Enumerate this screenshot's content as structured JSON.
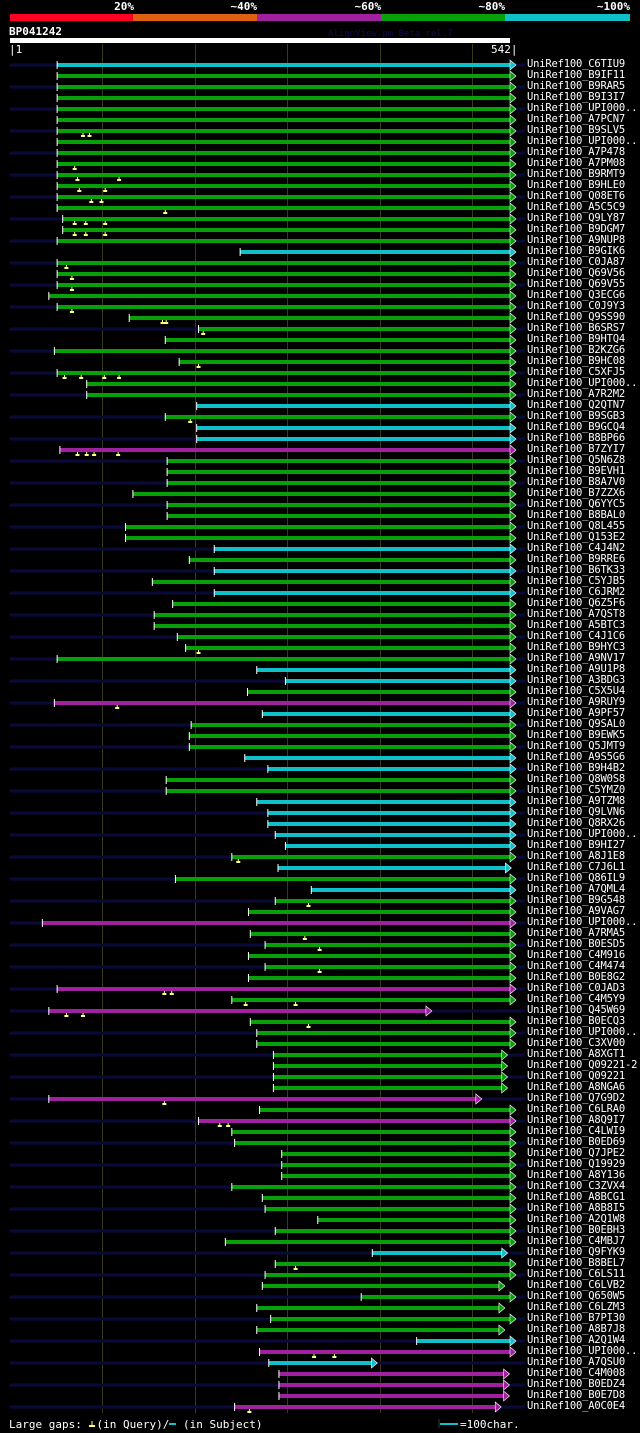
{
  "legend": {
    "labels": [
      "20%",
      "~40%",
      "~60%",
      "~80%",
      "~100%"
    ],
    "colors": [
      "#ff0022",
      "#e06010",
      "#a020a0",
      "#08a008",
      "#10c0c8"
    ]
  },
  "query": {
    "name": "BP041242",
    "length": 542,
    "start_label": "1",
    "end_label": "542"
  },
  "watermark": "AlignView.pm Beta rel.7",
  "colors": {
    "cyan": "#10c0c8",
    "green": "#08a008",
    "purple": "#a020a0",
    "query_line": "#0a0a3a",
    "grid": "#3a3a1a",
    "gap_marker": "#ffff80"
  },
  "hits": [
    {
      "label": "UniRef100_C6TIU9",
      "color": "cyan",
      "start": 52,
      "end": 542,
      "gaps": []
    },
    {
      "label": "UniRef100_B9IF11",
      "color": "green",
      "start": 52,
      "end": 542,
      "gaps": []
    },
    {
      "label": "UniRef100_B9RAR5",
      "color": "green",
      "start": 52,
      "end": 542,
      "gaps": []
    },
    {
      "label": "UniRef100_B9I3I7",
      "color": "green",
      "start": 52,
      "end": 542,
      "gaps": []
    },
    {
      "label": "UniRef100_UPI000..",
      "color": "green",
      "start": 52,
      "end": 542,
      "gaps": []
    },
    {
      "label": "UniRef100_A7PCN7",
      "color": "green",
      "start": 52,
      "end": 542,
      "gaps": []
    },
    {
      "label": "UniRef100_B9SLV5",
      "color": "green",
      "start": 52,
      "end": 542,
      "gaps": [
        80,
        87
      ]
    },
    {
      "label": "UniRef100_UPI000..",
      "color": "green",
      "start": 52,
      "end": 542,
      "gaps": []
    },
    {
      "label": "UniRef100_A7P478",
      "color": "green",
      "start": 52,
      "end": 542,
      "gaps": []
    },
    {
      "label": "UniRef100_A7PM08",
      "color": "green",
      "start": 52,
      "end": 542,
      "gaps": [
        71
      ]
    },
    {
      "label": "UniRef100_B9RMT9",
      "color": "green",
      "start": 52,
      "end": 542,
      "gaps": [
        74,
        119
      ]
    },
    {
      "label": "UniRef100_B9HLE0",
      "color": "green",
      "start": 52,
      "end": 542,
      "gaps": [
        76,
        104
      ]
    },
    {
      "label": "UniRef100_Q08ET6",
      "color": "green",
      "start": 52,
      "end": 542,
      "gaps": [
        89,
        100
      ]
    },
    {
      "label": "UniRef100_A5C5C9",
      "color": "green",
      "start": 52,
      "end": 542,
      "gaps": [
        169
      ]
    },
    {
      "label": "UniRef100_Q9LY87",
      "color": "green",
      "start": 58,
      "end": 542,
      "gaps": [
        71,
        83,
        104
      ]
    },
    {
      "label": "UniRef100_B9DGM7",
      "color": "green",
      "start": 58,
      "end": 542,
      "gaps": [
        71,
        83,
        104
      ]
    },
    {
      "label": "UniRef100_A9NUP8",
      "color": "green",
      "start": 52,
      "end": 542,
      "gaps": []
    },
    {
      "label": "UniRef100_B9GIK6",
      "color": "cyan",
      "start": 250,
      "end": 542,
      "gaps": []
    },
    {
      "label": "UniRef100_C0JA87",
      "color": "green",
      "start": 52,
      "end": 542,
      "gaps": [
        62
      ]
    },
    {
      "label": "UniRef100_Q69V56",
      "color": "green",
      "start": 52,
      "end": 542,
      "gaps": [
        68
      ]
    },
    {
      "label": "UniRef100_Q69V55",
      "color": "green",
      "start": 52,
      "end": 542,
      "gaps": [
        68
      ]
    },
    {
      "label": "UniRef100_Q3ECG6",
      "color": "green",
      "start": 43,
      "end": 542,
      "gaps": []
    },
    {
      "label": "UniRef100_C0J9Y3",
      "color": "green",
      "start": 52,
      "end": 542,
      "gaps": [
        68
      ]
    },
    {
      "label": "UniRef100_Q9SS90",
      "color": "green",
      "start": 130,
      "end": 542,
      "gaps": [
        166,
        170
      ]
    },
    {
      "label": "UniRef100_B6SRS7",
      "color": "green",
      "start": 205,
      "end": 542,
      "gaps": [
        210
      ]
    },
    {
      "label": "UniRef100_B9HTQ4",
      "color": "green",
      "start": 169,
      "end": 542,
      "gaps": []
    },
    {
      "label": "UniRef100_B2KZG6",
      "color": "green",
      "start": 49,
      "end": 542,
      "gaps": []
    },
    {
      "label": "UniRef100_B9HC08",
      "color": "green",
      "start": 184,
      "end": 542,
      "gaps": [
        205
      ]
    },
    {
      "label": "UniRef100_C5XFJ5",
      "color": "green",
      "start": 52,
      "end": 542,
      "gaps": [
        60,
        78,
        103,
        119
      ]
    },
    {
      "label": "UniRef100_UPI000..",
      "color": "green",
      "start": 84,
      "end": 542,
      "gaps": []
    },
    {
      "label": "UniRef100_A7R2M2",
      "color": "green",
      "start": 84,
      "end": 542,
      "gaps": []
    },
    {
      "label": "UniRef100_Q2QTN7",
      "color": "cyan",
      "start": 203,
      "end": 542,
      "gaps": []
    },
    {
      "label": "UniRef100_B9SGB3",
      "color": "green",
      "start": 169,
      "end": 542,
      "gaps": [
        196
      ]
    },
    {
      "label": "UniRef100_B9GCQ4",
      "color": "cyan",
      "start": 203,
      "end": 542,
      "gaps": []
    },
    {
      "label": "UniRef100_B8BP66",
      "color": "cyan",
      "start": 203,
      "end": 542,
      "gaps": []
    },
    {
      "label": "UniRef100_B7ZYI7",
      "color": "purple",
      "start": 55,
      "end": 542,
      "gaps": [
        74,
        84,
        92,
        118
      ]
    },
    {
      "label": "UniRef100_Q5N6Z8",
      "color": "green",
      "start": 171,
      "end": 542,
      "gaps": []
    },
    {
      "label": "UniRef100_B9EVH1",
      "color": "green",
      "start": 171,
      "end": 542,
      "gaps": []
    },
    {
      "label": "UniRef100_B8A7V0",
      "color": "green",
      "start": 171,
      "end": 542,
      "gaps": []
    },
    {
      "label": "UniRef100_B7ZZX6",
      "color": "green",
      "start": 134,
      "end": 542,
      "gaps": []
    },
    {
      "label": "UniRef100_Q6YYC5",
      "color": "green",
      "start": 171,
      "end": 542,
      "gaps": []
    },
    {
      "label": "UniRef100_B8BAL0",
      "color": "green",
      "start": 171,
      "end": 542,
      "gaps": []
    },
    {
      "label": "UniRef100_Q8L455",
      "color": "green",
      "start": 126,
      "end": 542,
      "gaps": []
    },
    {
      "label": "UniRef100_Q153E2",
      "color": "green",
      "start": 126,
      "end": 542,
      "gaps": []
    },
    {
      "label": "UniRef100_C4J4N2",
      "color": "cyan",
      "start": 222,
      "end": 542,
      "gaps": []
    },
    {
      "label": "UniRef100_B9RRE6",
      "color": "green",
      "start": 195,
      "end": 542,
      "gaps": []
    },
    {
      "label": "UniRef100_B6TK33",
      "color": "cyan",
      "start": 222,
      "end": 542,
      "gaps": []
    },
    {
      "label": "UniRef100_C5YJB5",
      "color": "green",
      "start": 155,
      "end": 542,
      "gaps": []
    },
    {
      "label": "UniRef100_C6JRM2",
      "color": "cyan",
      "start": 222,
      "end": 542,
      "gaps": []
    },
    {
      "label": "UniRef100_Q6Z5F6",
      "color": "green",
      "start": 177,
      "end": 542,
      "gaps": []
    },
    {
      "label": "UniRef100_A7QST8",
      "color": "green",
      "start": 157,
      "end": 542,
      "gaps": []
    },
    {
      "label": "UniRef100_A5BTC3",
      "color": "green",
      "start": 157,
      "end": 542,
      "gaps": []
    },
    {
      "label": "UniRef100_C4J1C6",
      "color": "green",
      "start": 182,
      "end": 542,
      "gaps": []
    },
    {
      "label": "UniRef100_B9HYC3",
      "color": "green",
      "start": 191,
      "end": 542,
      "gaps": [
        205
      ]
    },
    {
      "label": "UniRef100_A9NV17",
      "color": "green",
      "start": 52,
      "end": 542,
      "gaps": []
    },
    {
      "label": "UniRef100_A9U1P8",
      "color": "cyan",
      "start": 268,
      "end": 542,
      "gaps": []
    },
    {
      "label": "UniRef100_A3BDG3",
      "color": "cyan",
      "start": 299,
      "end": 542,
      "gaps": []
    },
    {
      "label": "UniRef100_C5X5U4",
      "color": "green",
      "start": 258,
      "end": 542,
      "gaps": []
    },
    {
      "label": "UniRef100_A9RUY9",
      "color": "purple",
      "start": 49,
      "end": 542,
      "gaps": [
        117
      ]
    },
    {
      "label": "UniRef100_A9PF57",
      "color": "cyan",
      "start": 274,
      "end": 542,
      "gaps": []
    },
    {
      "label": "UniRef100_Q9SAL0",
      "color": "green",
      "start": 197,
      "end": 542,
      "gaps": []
    },
    {
      "label": "UniRef100_B9EWK5",
      "color": "green",
      "start": 195,
      "end": 542,
      "gaps": []
    },
    {
      "label": "UniRef100_Q5JMT9",
      "color": "green",
      "start": 195,
      "end": 542,
      "gaps": []
    },
    {
      "label": "UniRef100_A9S5G6",
      "color": "cyan",
      "start": 255,
      "end": 542,
      "gaps": []
    },
    {
      "label": "UniRef100_B9H4B2",
      "color": "cyan",
      "start": 280,
      "end": 542,
      "gaps": []
    },
    {
      "label": "UniRef100_Q8W0S8",
      "color": "green",
      "start": 170,
      "end": 542,
      "gaps": []
    },
    {
      "label": "UniRef100_C5YMZ0",
      "color": "green",
      "start": 170,
      "end": 542,
      "gaps": []
    },
    {
      "label": "UniRef100_A9TZM8",
      "color": "cyan",
      "start": 268,
      "end": 542,
      "gaps": []
    },
    {
      "label": "UniRef100_Q9LVN6",
      "color": "cyan",
      "start": 280,
      "end": 542,
      "gaps": []
    },
    {
      "label": "UniRef100_Q8RX26",
      "color": "cyan",
      "start": 280,
      "end": 542,
      "gaps": []
    },
    {
      "label": "UniRef100_UPI000..",
      "color": "cyan",
      "start": 288,
      "end": 542,
      "gaps": []
    },
    {
      "label": "UniRef100_B9HI27",
      "color": "cyan",
      "start": 299,
      "end": 542,
      "gaps": []
    },
    {
      "label": "UniRef100_A8J1E8",
      "color": "green",
      "start": 241,
      "end": 542,
      "gaps": [
        248
      ]
    },
    {
      "label": "UniRef100_C7J6L1",
      "color": "cyan",
      "start": 291,
      "end": 537,
      "gaps": []
    },
    {
      "label": "UniRef100_Q86IL9",
      "color": "green",
      "start": 180,
      "end": 542,
      "gaps": []
    },
    {
      "label": "UniRef100_A7QML4",
      "color": "cyan",
      "start": 327,
      "end": 542,
      "gaps": []
    },
    {
      "label": "UniRef100_B9G548",
      "color": "green",
      "start": 288,
      "end": 542,
      "gaps": [
        324
      ]
    },
    {
      "label": "UniRef100_A9VAG7",
      "color": "green",
      "start": 259,
      "end": 542,
      "gaps": []
    },
    {
      "label": "UniRef100_UPI000..",
      "color": "purple",
      "start": 36,
      "end": 542,
      "gaps": []
    },
    {
      "label": "UniRef100_A7RMA5",
      "color": "green",
      "start": 261,
      "end": 542,
      "gaps": [
        320
      ]
    },
    {
      "label": "UniRef100_B0ESD5",
      "color": "green",
      "start": 277,
      "end": 542,
      "gaps": [
        336
      ]
    },
    {
      "label": "UniRef100_C4M916",
      "color": "green",
      "start": 259,
      "end": 542,
      "gaps": []
    },
    {
      "label": "UniRef100_C4M474",
      "color": "green",
      "start": 277,
      "end": 542,
      "gaps": [
        336
      ]
    },
    {
      "label": "UniRef100_B0E8G2",
      "color": "green",
      "start": 259,
      "end": 542,
      "gaps": []
    },
    {
      "label": "UniRef100_C0JAD3",
      "color": "purple",
      "start": 52,
      "end": 542,
      "gaps": [
        168,
        176
      ]
    },
    {
      "label": "UniRef100_C4M5Y9",
      "color": "green",
      "start": 241,
      "end": 542,
      "gaps": [
        256,
        310
      ]
    },
    {
      "label": "UniRef100_Q45W69",
      "color": "purple",
      "start": 43,
      "end": 451,
      "gaps": [
        62,
        80
      ]
    },
    {
      "label": "UniRef100_B0ECQ3",
      "color": "green",
      "start": 261,
      "end": 542,
      "gaps": [
        324
      ]
    },
    {
      "label": "UniRef100_UPI000..",
      "color": "green",
      "start": 268,
      "end": 542,
      "gaps": []
    },
    {
      "label": "UniRef100_C3XV00",
      "color": "green",
      "start": 268,
      "end": 542,
      "gaps": []
    },
    {
      "label": "UniRef100_A8XGT1",
      "color": "green",
      "start": 286,
      "end": 533,
      "gaps": []
    },
    {
      "label": "UniRef100_Q09221-2",
      "color": "green",
      "start": 286,
      "end": 533,
      "gaps": []
    },
    {
      "label": "UniRef100_Q09221",
      "color": "green",
      "start": 286,
      "end": 533,
      "gaps": []
    },
    {
      "label": "UniRef100_A8NGA6",
      "color": "green",
      "start": 286,
      "end": 533,
      "gaps": []
    },
    {
      "label": "UniRef100_Q7G9D2",
      "color": "purple",
      "start": 43,
      "end": 505,
      "gaps": [
        168
      ]
    },
    {
      "label": "UniRef100_C6LRA0",
      "color": "green",
      "start": 271,
      "end": 542,
      "gaps": []
    },
    {
      "label": "UniRef100_A8Q9I7",
      "color": "purple",
      "start": 205,
      "end": 542,
      "gaps": [
        228,
        237
      ]
    },
    {
      "label": "UniRef100_C4LWI9",
      "color": "green",
      "start": 241,
      "end": 542,
      "gaps": []
    },
    {
      "label": "UniRef100_B0ED69",
      "color": "green",
      "start": 244,
      "end": 542,
      "gaps": []
    },
    {
      "label": "UniRef100_Q7JPE2",
      "color": "green",
      "start": 295,
      "end": 542,
      "gaps": []
    },
    {
      "label": "UniRef100_Q19929",
      "color": "green",
      "start": 295,
      "end": 542,
      "gaps": []
    },
    {
      "label": "UniRef100_A8Y136",
      "color": "green",
      "start": 295,
      "end": 542,
      "gaps": []
    },
    {
      "label": "UniRef100_C3ZVX4",
      "color": "green",
      "start": 241,
      "end": 542,
      "gaps": []
    },
    {
      "label": "UniRef100_A8BCG1",
      "color": "green",
      "start": 274,
      "end": 542,
      "gaps": []
    },
    {
      "label": "UniRef100_A8B8I5",
      "color": "green",
      "start": 277,
      "end": 542,
      "gaps": []
    },
    {
      "label": "UniRef100_A2Q1W8",
      "color": "green",
      "start": 334,
      "end": 542,
      "gaps": []
    },
    {
      "label": "UniRef100_B0EBH3",
      "color": "green",
      "start": 288,
      "end": 542,
      "gaps": []
    },
    {
      "label": "UniRef100_C4MBJ7",
      "color": "green",
      "start": 234,
      "end": 542,
      "gaps": []
    },
    {
      "label": "UniRef100_Q9FYK9",
      "color": "cyan",
      "start": 393,
      "end": 533,
      "gaps": []
    },
    {
      "label": "UniRef100_B8BEL7",
      "color": "green",
      "start": 288,
      "end": 542,
      "gaps": [
        310
      ]
    },
    {
      "label": "UniRef100_C6LS11",
      "color": "green",
      "start": 277,
      "end": 542,
      "gaps": []
    },
    {
      "label": "UniRef100_C6LVB2",
      "color": "green",
      "start": 274,
      "end": 530,
      "gaps": []
    },
    {
      "label": "UniRef100_Q650W5",
      "color": "green",
      "start": 381,
      "end": 542,
      "gaps": []
    },
    {
      "label": "UniRef100_C6LZM3",
      "color": "green",
      "start": 268,
      "end": 530,
      "gaps": []
    },
    {
      "label": "UniRef100_B7PI30",
      "color": "green",
      "start": 283,
      "end": 542,
      "gaps": []
    },
    {
      "label": "UniRef100_A8B7J8",
      "color": "green",
      "start": 268,
      "end": 530,
      "gaps": []
    },
    {
      "label": "UniRef100_A2Q1W4",
      "color": "cyan",
      "start": 441,
      "end": 542,
      "gaps": []
    },
    {
      "label": "UniRef100_UPI000..",
      "color": "purple",
      "start": 271,
      "end": 542,
      "gaps": [
        330,
        352
      ]
    },
    {
      "label": "UniRef100_A7QSU0",
      "color": "cyan",
      "start": 281,
      "end": 392,
      "gaps": []
    },
    {
      "label": "UniRef100_C4M008",
      "color": "purple",
      "start": 292,
      "end": 535,
      "gaps": []
    },
    {
      "label": "UniRef100_B0EDZ4",
      "color": "purple",
      "start": 292,
      "end": 535,
      "gaps": []
    },
    {
      "label": "UniRef100_B0E7D8",
      "color": "purple",
      "start": 292,
      "end": 535,
      "gaps": []
    },
    {
      "label": "UniRef100_A0C0E4",
      "color": "purple",
      "start": 244,
      "end": 526,
      "gaps": [
        260
      ]
    }
  ],
  "footer": {
    "gaps_label": "Large gaps:",
    "query_gap_text": "(in Query)/",
    "subject_gap_text": " (in Subject)",
    "scale_text": "=100char."
  }
}
